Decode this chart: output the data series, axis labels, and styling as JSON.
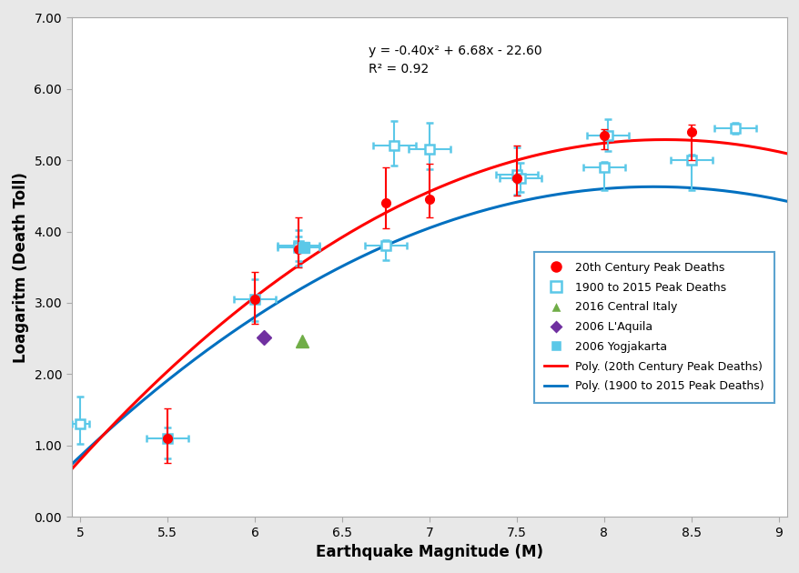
{
  "xlabel": "Earthquake Magnitude (M)",
  "ylabel": "Loagaritm (Death Toll)",
  "xlim": [
    4.95,
    9.05
  ],
  "ylim": [
    0.0,
    7.0
  ],
  "xticks": [
    5.0,
    5.5,
    6.0,
    6.5,
    7.0,
    7.5,
    8.0,
    8.5,
    9.0
  ],
  "yticks": [
    0.0,
    1.0,
    2.0,
    3.0,
    4.0,
    5.0,
    6.0,
    7.0
  ],
  "ytick_labels": [
    "0.00",
    "1.00",
    "2.00",
    "3.00",
    "4.00",
    "5.00",
    "6.00",
    "7.00"
  ],
  "equation_text": "y = -0.40x² + 6.68x - 22.60\nR² = 0.92",
  "eq_x": 6.65,
  "eq_y": 6.62,
  "red_dots_x": [
    5.5,
    6.0,
    6.25,
    6.75,
    7.0,
    7.5,
    8.0,
    8.5
  ],
  "red_dots_y": [
    1.1,
    3.05,
    3.75,
    4.4,
    4.45,
    4.75,
    5.35,
    5.4
  ],
  "red_yerr_lo": [
    0.35,
    0.35,
    0.25,
    0.35,
    0.25,
    0.25,
    0.2,
    0.4
  ],
  "red_yerr_hi": [
    0.42,
    0.38,
    0.45,
    0.5,
    0.5,
    0.45,
    0.08,
    0.1
  ],
  "blue_sq_x": [
    5.0,
    5.5,
    6.0,
    6.25,
    6.25,
    6.75,
    6.8,
    7.0,
    7.5,
    7.52,
    8.0,
    8.02,
    8.5,
    8.75
  ],
  "blue_sq_y": [
    1.3,
    1.1,
    3.05,
    3.8,
    3.78,
    3.8,
    5.2,
    5.15,
    4.8,
    4.75,
    4.9,
    5.35,
    5.0,
    5.45
  ],
  "blue_xerr_lo": [
    0.05,
    0.12,
    0.12,
    0.12,
    0.12,
    0.12,
    0.12,
    0.12,
    0.12,
    0.12,
    0.12,
    0.12,
    0.12,
    0.12
  ],
  "blue_xerr_hi": [
    0.05,
    0.12,
    0.12,
    0.12,
    0.12,
    0.12,
    0.12,
    0.12,
    0.12,
    0.12,
    0.12,
    0.12,
    0.12,
    0.12
  ],
  "blue_yerr_lo": [
    0.28,
    0.28,
    0.3,
    0.28,
    0.2,
    0.2,
    0.28,
    0.28,
    0.28,
    0.2,
    0.32,
    0.22,
    0.42,
    0.08
  ],
  "blue_yerr_hi": [
    0.38,
    0.15,
    0.28,
    0.22,
    0.15,
    0.08,
    0.35,
    0.38,
    0.38,
    0.22,
    0.08,
    0.22,
    0.08,
    0.08
  ],
  "green_tri_x": 6.27,
  "green_tri_y": 2.47,
  "purple_dia_x": 6.05,
  "purple_dia_y": 2.51,
  "yog_sq_x": 6.28,
  "yog_sq_y": 3.78,
  "red_poly": [
    -0.4,
    6.68,
    -22.6
  ],
  "blue_poly_a": -0.35,
  "blue_poly_b": 5.8,
  "blue_poly_c": -19.4,
  "red_color": "#ff0000",
  "blue_line_color": "#0070c0",
  "blue_sq_color": "#5bc8e8",
  "green_color": "#70ad47",
  "purple_color": "#7030a0",
  "yog_color": "#5bc8e8",
  "bg_color": "#e8e8e8",
  "plot_bg": "#ffffff",
  "legend_edge": "#5ba3d0"
}
